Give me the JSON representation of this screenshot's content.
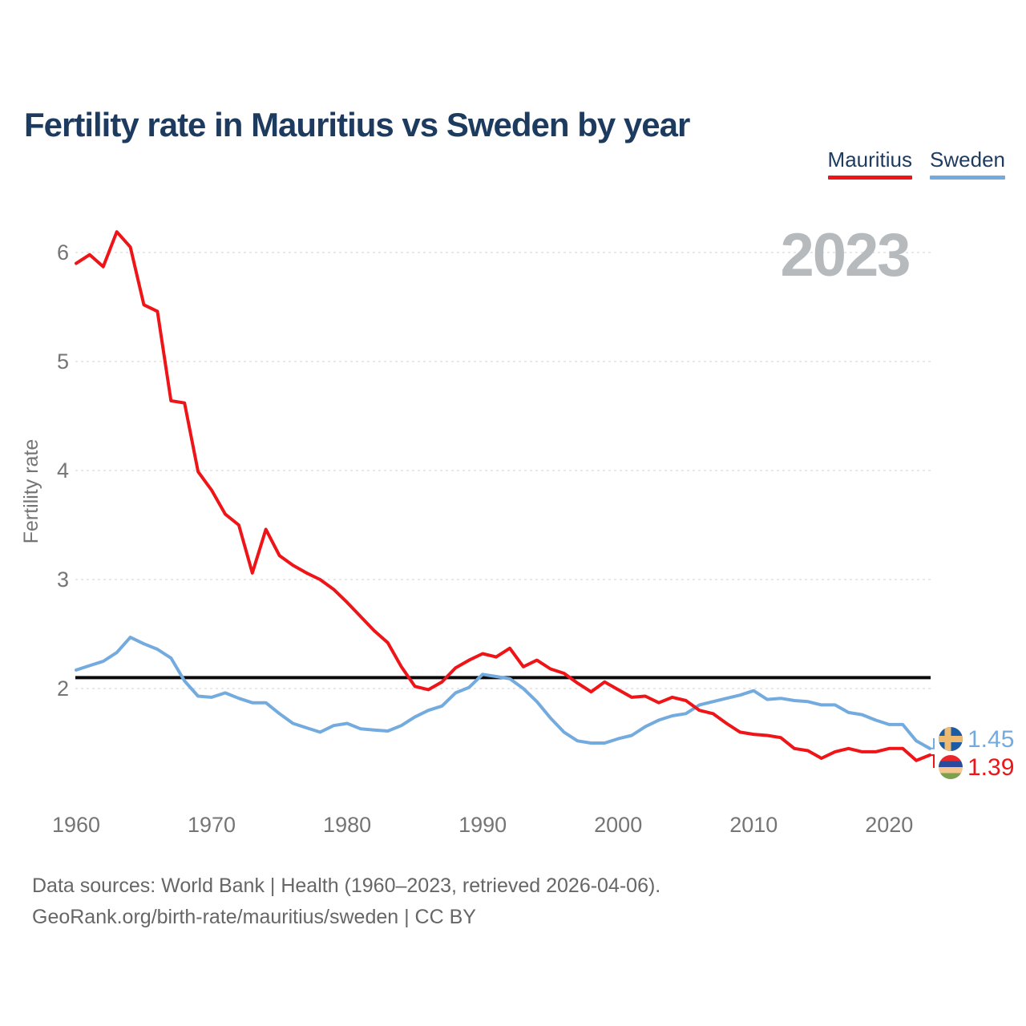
{
  "title": {
    "text": "Fertility rate in Mauritius vs Sweden by year",
    "color": "#1d3a5f"
  },
  "legend": [
    {
      "label": "Mauritius",
      "color": "#ee1417"
    },
    {
      "label": "Sweden",
      "color": "#74abdf"
    }
  ],
  "footer": {
    "line1": "Data sources: World Bank | Health (1960–2023, retrieved 2026-04-06).",
    "line2": "GeoRank.org/birth-rate/mauritius/sweden | CC BY"
  },
  "chart_data": {
    "type": "line",
    "title": "Fertility rate in Mauritius vs Sweden by year",
    "xlabel": "",
    "ylabel": "Fertility rate",
    "x_start": 1960,
    "x_end": 2023,
    "xlim": [
      1960,
      2023
    ],
    "ylim": [
      1.3,
      6.3
    ],
    "grid": true,
    "legend_position": "top-right",
    "x_ticks": [
      1960,
      1970,
      1980,
      1990,
      2000,
      2010,
      2020
    ],
    "y_ticks": [
      2,
      3,
      4,
      5,
      6
    ],
    "tick_color": "#757575",
    "gridline_color": "#e0e0e0",
    "reference_line": {
      "value": 2.1,
      "color": "#0a0a0a"
    },
    "year_annotation": {
      "text": "2023",
      "color": "#b7babd"
    },
    "series": [
      {
        "name": "Sweden",
        "color": "#74abdf",
        "end_label": "1.45",
        "end_label_color": "#74abdf",
        "flag_icon": "sweden-flag-icon",
        "flag_colors": {
          "field": "#1c5ba6",
          "cross": "#eeba70"
        },
        "values": [
          2.17,
          2.21,
          2.25,
          2.33,
          2.47,
          2.41,
          2.36,
          2.28,
          2.07,
          1.93,
          1.92,
          1.96,
          1.91,
          1.87,
          1.87,
          1.77,
          1.68,
          1.64,
          1.6,
          1.66,
          1.68,
          1.63,
          1.62,
          1.61,
          1.66,
          1.74,
          1.8,
          1.84,
          1.96,
          2.01,
          2.13,
          2.11,
          2.09,
          2.0,
          1.88,
          1.73,
          1.6,
          1.52,
          1.5,
          1.5,
          1.54,
          1.57,
          1.65,
          1.71,
          1.75,
          1.77,
          1.85,
          1.88,
          1.91,
          1.94,
          1.98,
          1.9,
          1.91,
          1.89,
          1.88,
          1.85,
          1.85,
          1.78,
          1.76,
          1.71,
          1.67,
          1.67,
          1.52,
          1.45
        ]
      },
      {
        "name": "Mauritius",
        "color": "#ee1417",
        "end_label": "1.39",
        "end_label_color": "#ee1417",
        "flag_icon": "mauritius-flag-icon",
        "flag_colors": {
          "stripes": [
            "#e8272b",
            "#2b4a9b",
            "#f6c48d",
            "#7aa24c"
          ]
        },
        "values": [
          5.9,
          5.98,
          5.87,
          6.19,
          6.05,
          5.52,
          5.46,
          4.64,
          4.62,
          3.99,
          3.82,
          3.6,
          3.5,
          3.06,
          3.46,
          3.22,
          3.13,
          3.06,
          3.0,
          2.91,
          2.79,
          2.66,
          2.53,
          2.42,
          2.2,
          2.02,
          1.99,
          2.06,
          2.19,
          2.26,
          2.32,
          2.29,
          2.37,
          2.2,
          2.26,
          2.18,
          2.14,
          2.05,
          1.97,
          2.06,
          1.99,
          1.92,
          1.93,
          1.87,
          1.92,
          1.89,
          1.8,
          1.77,
          1.68,
          1.6,
          1.58,
          1.57,
          1.55,
          1.45,
          1.43,
          1.36,
          1.42,
          1.45,
          1.42,
          1.42,
          1.45,
          1.45,
          1.34,
          1.39
        ]
      }
    ]
  }
}
